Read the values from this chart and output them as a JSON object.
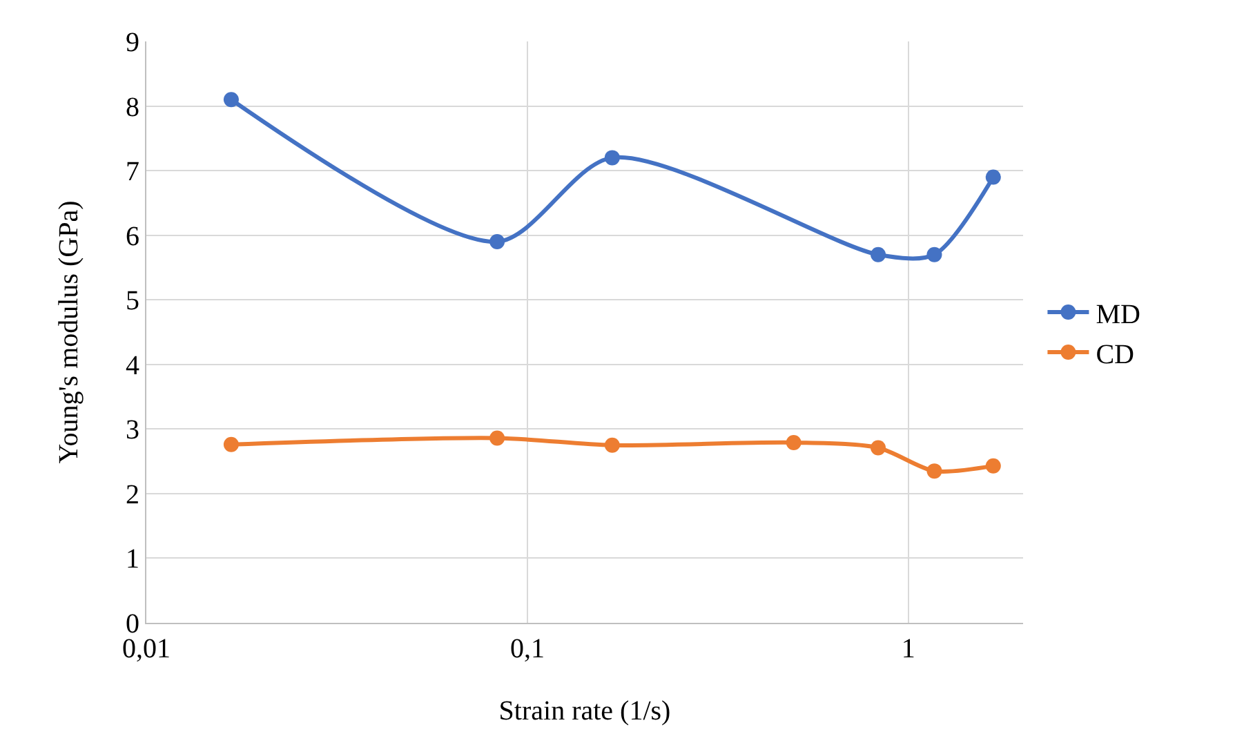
{
  "chart_data": {
    "type": "line",
    "xlabel": "Strain rate (1/s)",
    "ylabel": "Young's modulus (GPa)",
    "log": "x",
    "xlim": [
      0.01,
      2
    ],
    "xticks": [
      {
        "value": 0.01,
        "label": "0,01"
      },
      {
        "value": 0.1,
        "label": "0,1"
      },
      1
    ],
    "ylim": [
      0,
      9
    ],
    "yticks": [
      0,
      1,
      2,
      3,
      4,
      5,
      6,
      7,
      8,
      9
    ],
    "grid": true,
    "legend": "right",
    "marker": "circle",
    "line_style": "solid",
    "series": [
      {
        "name": "MD",
        "color": "#4472c4",
        "x": [
          0.0167,
          0.0833,
          0.167,
          0.833,
          1.17,
          1.67
        ],
        "values": [
          8.1,
          5.9,
          7.2,
          5.7,
          5.7,
          6.9
        ]
      },
      {
        "name": "CD",
        "color": "#ed7d31",
        "x": [
          0.0167,
          0.0833,
          0.167,
          0.5,
          0.833,
          1.17,
          1.67
        ],
        "values": [
          2.76,
          2.86,
          2.75,
          2.79,
          2.71,
          2.35,
          2.43
        ]
      }
    ]
  }
}
